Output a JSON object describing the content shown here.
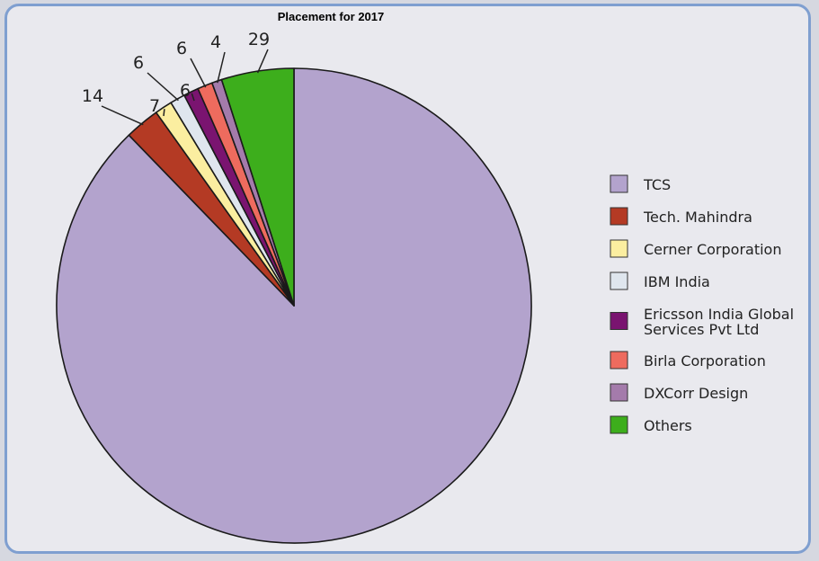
{
  "chart_data": {
    "type": "pie",
    "title": "Placement for 2017",
    "slices": [
      {
        "label": "TCS",
        "value": 516,
        "color": "#b3a3cd",
        "data_label": ""
      },
      {
        "label": "Tech. Mahindra",
        "value": 14,
        "color": "#b43a24",
        "data_label": "14"
      },
      {
        "label": "Cerner Corporation",
        "value": 7,
        "color": "#fbeea0",
        "data_label": "7"
      },
      {
        "label": "IBM India",
        "value": 6,
        "color": "#dfe6ee",
        "data_label": "6"
      },
      {
        "label": "Ericsson India Global Services Pvt Ltd",
        "value": 6,
        "color": "#7a1470",
        "data_label": "6"
      },
      {
        "label": "Birla Corporation",
        "value": 6,
        "color": "#ee6b5e",
        "data_label": "6"
      },
      {
        "label": "DXCorr Design",
        "value": 4,
        "color": "#a47bab",
        "data_label": "4"
      },
      {
        "label": "Others",
        "value": 29,
        "color": "#3dae1c",
        "data_label": "29"
      }
    ],
    "legend": {
      "position": "right",
      "entries": [
        {
          "lines": [
            "TCS"
          ]
        },
        {
          "lines": [
            "Tech. Mahindra"
          ]
        },
        {
          "lines": [
            "Cerner Corporation"
          ]
        },
        {
          "lines": [
            "IBM India"
          ]
        },
        {
          "lines": [
            "Ericsson India Global",
            "Services Pvt Ltd"
          ]
        },
        {
          "lines": [
            "Birla Corporation"
          ]
        },
        {
          "lines": [
            "DXCorr Design"
          ]
        },
        {
          "lines": [
            "Others"
          ]
        }
      ]
    }
  }
}
